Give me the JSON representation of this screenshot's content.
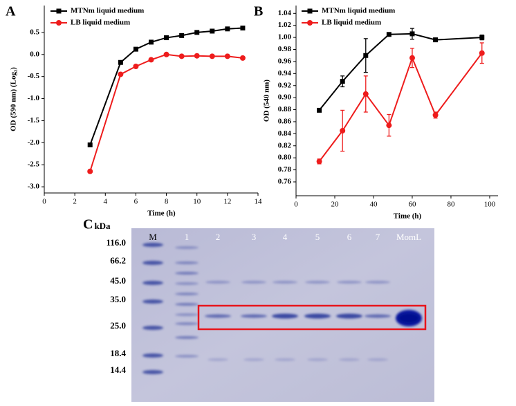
{
  "chart_data": [
    {
      "type": "line",
      "panel_label": "A",
      "x_label": "Time (h)",
      "y_label": "OD (590 nm) (Log₂)",
      "xlim": [
        0,
        14
      ],
      "xticks": [
        0,
        2,
        4,
        6,
        8,
        10,
        12,
        14
      ],
      "ylim": [
        -3.14,
        1.11
      ],
      "yticks": [
        {
          "value": -3,
          "label": "-3.0"
        },
        -2.5,
        {
          "value": -2,
          "label": "-2.0"
        },
        -1.5,
        {
          "value": -1,
          "label": "-1.0"
        },
        -0.5,
        {
          "value": 0,
          "label": "0.0"
        },
        0.5
      ],
      "x": [
        3,
        5,
        6,
        7,
        8,
        9,
        10,
        11,
        12,
        13
      ],
      "series": [
        {
          "name": "MTNm liquid medium",
          "color": "#000000",
          "marker": "square",
          "values": [
            -2.05,
            -0.18,
            0.12,
            0.28,
            0.38,
            0.43,
            0.5,
            0.53,
            0.58,
            0.6
          ]
        },
        {
          "name": "LB liquid medium",
          "color": "#ee1c1c",
          "marker": "circle",
          "values": [
            -2.65,
            -0.45,
            -0.27,
            -0.12,
            0.0,
            -0.04,
            -0.03,
            -0.04,
            -0.04,
            -0.08
          ]
        }
      ]
    },
    {
      "type": "line",
      "panel_label": "B",
      "x_label": "Time (h)",
      "y_label": "OD (540 nm)",
      "xlim": [
        0,
        104.3
      ],
      "xticks": [
        0,
        20,
        40,
        60,
        80,
        100
      ],
      "ylim": [
        0.737,
        1.053
      ],
      "yticks": [
        0.76,
        0.78,
        {
          "value": 0.8,
          "label": "0.80"
        },
        0.82,
        0.84,
        0.86,
        0.88,
        {
          "value": 0.9,
          "label": "0.90"
        },
        0.92,
        0.94,
        0.96,
        0.98,
        {
          "value": 1,
          "label": "1.00"
        },
        1.02,
        1.04
      ],
      "x": [
        12,
        24,
        36,
        48,
        60,
        72,
        96
      ],
      "series": [
        {
          "name": "MTNm liquid medium",
          "color": "#000000",
          "marker": "square",
          "values": [
            0.879,
            0.927,
            0.97,
            1.005,
            1.006,
            0.996,
            1.0
          ],
          "errors": [
            0,
            0.009,
            0.028,
            0.002,
            0.009,
            0.003,
            0.004
          ]
        },
        {
          "name": "LB liquid medium",
          "color": "#ee1c1c",
          "marker": "circle",
          "values": [
            0.794,
            0.845,
            0.906,
            0.854,
            0.966,
            0.871,
            0.974
          ],
          "errors": [
            0.004,
            0.034,
            0.03,
            0.018,
            0.016,
            0.005,
            0.017
          ]
        }
      ]
    }
  ],
  "panel_c": {
    "panel_label": "C",
    "unit": "kDa",
    "ladder": [
      "116.0",
      "66.2",
      "45.0",
      "35.0",
      "25.0",
      "18.4",
      "14.4"
    ],
    "lanes": [
      "M",
      "1",
      "2",
      "3",
      "4",
      "5",
      "6",
      "7",
      "MomL"
    ]
  }
}
